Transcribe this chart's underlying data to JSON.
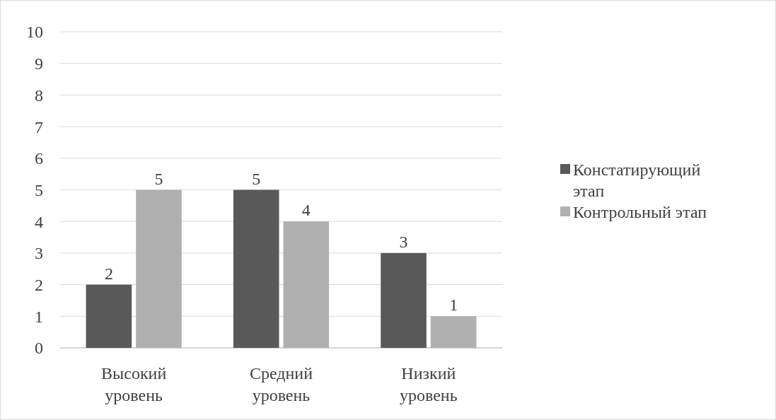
{
  "chart_data": {
    "type": "bar",
    "categories": [
      "Высокий уровень",
      "Средний уровень",
      "Низкий уровень"
    ],
    "series": [
      {
        "name": "Констатирующий этап",
        "color": "#595959",
        "values": [
          2,
          5,
          3
        ]
      },
      {
        "name": "Контрольный этап",
        "color": "#b0b0b0",
        "values": [
          5,
          4,
          1
        ]
      }
    ],
    "ylim": [
      0,
      10
    ],
    "yticks": [
      0,
      1,
      2,
      3,
      4,
      5,
      6,
      7,
      8,
      9,
      10
    ],
    "grid": "y",
    "legend": "right",
    "data_labels": true
  }
}
